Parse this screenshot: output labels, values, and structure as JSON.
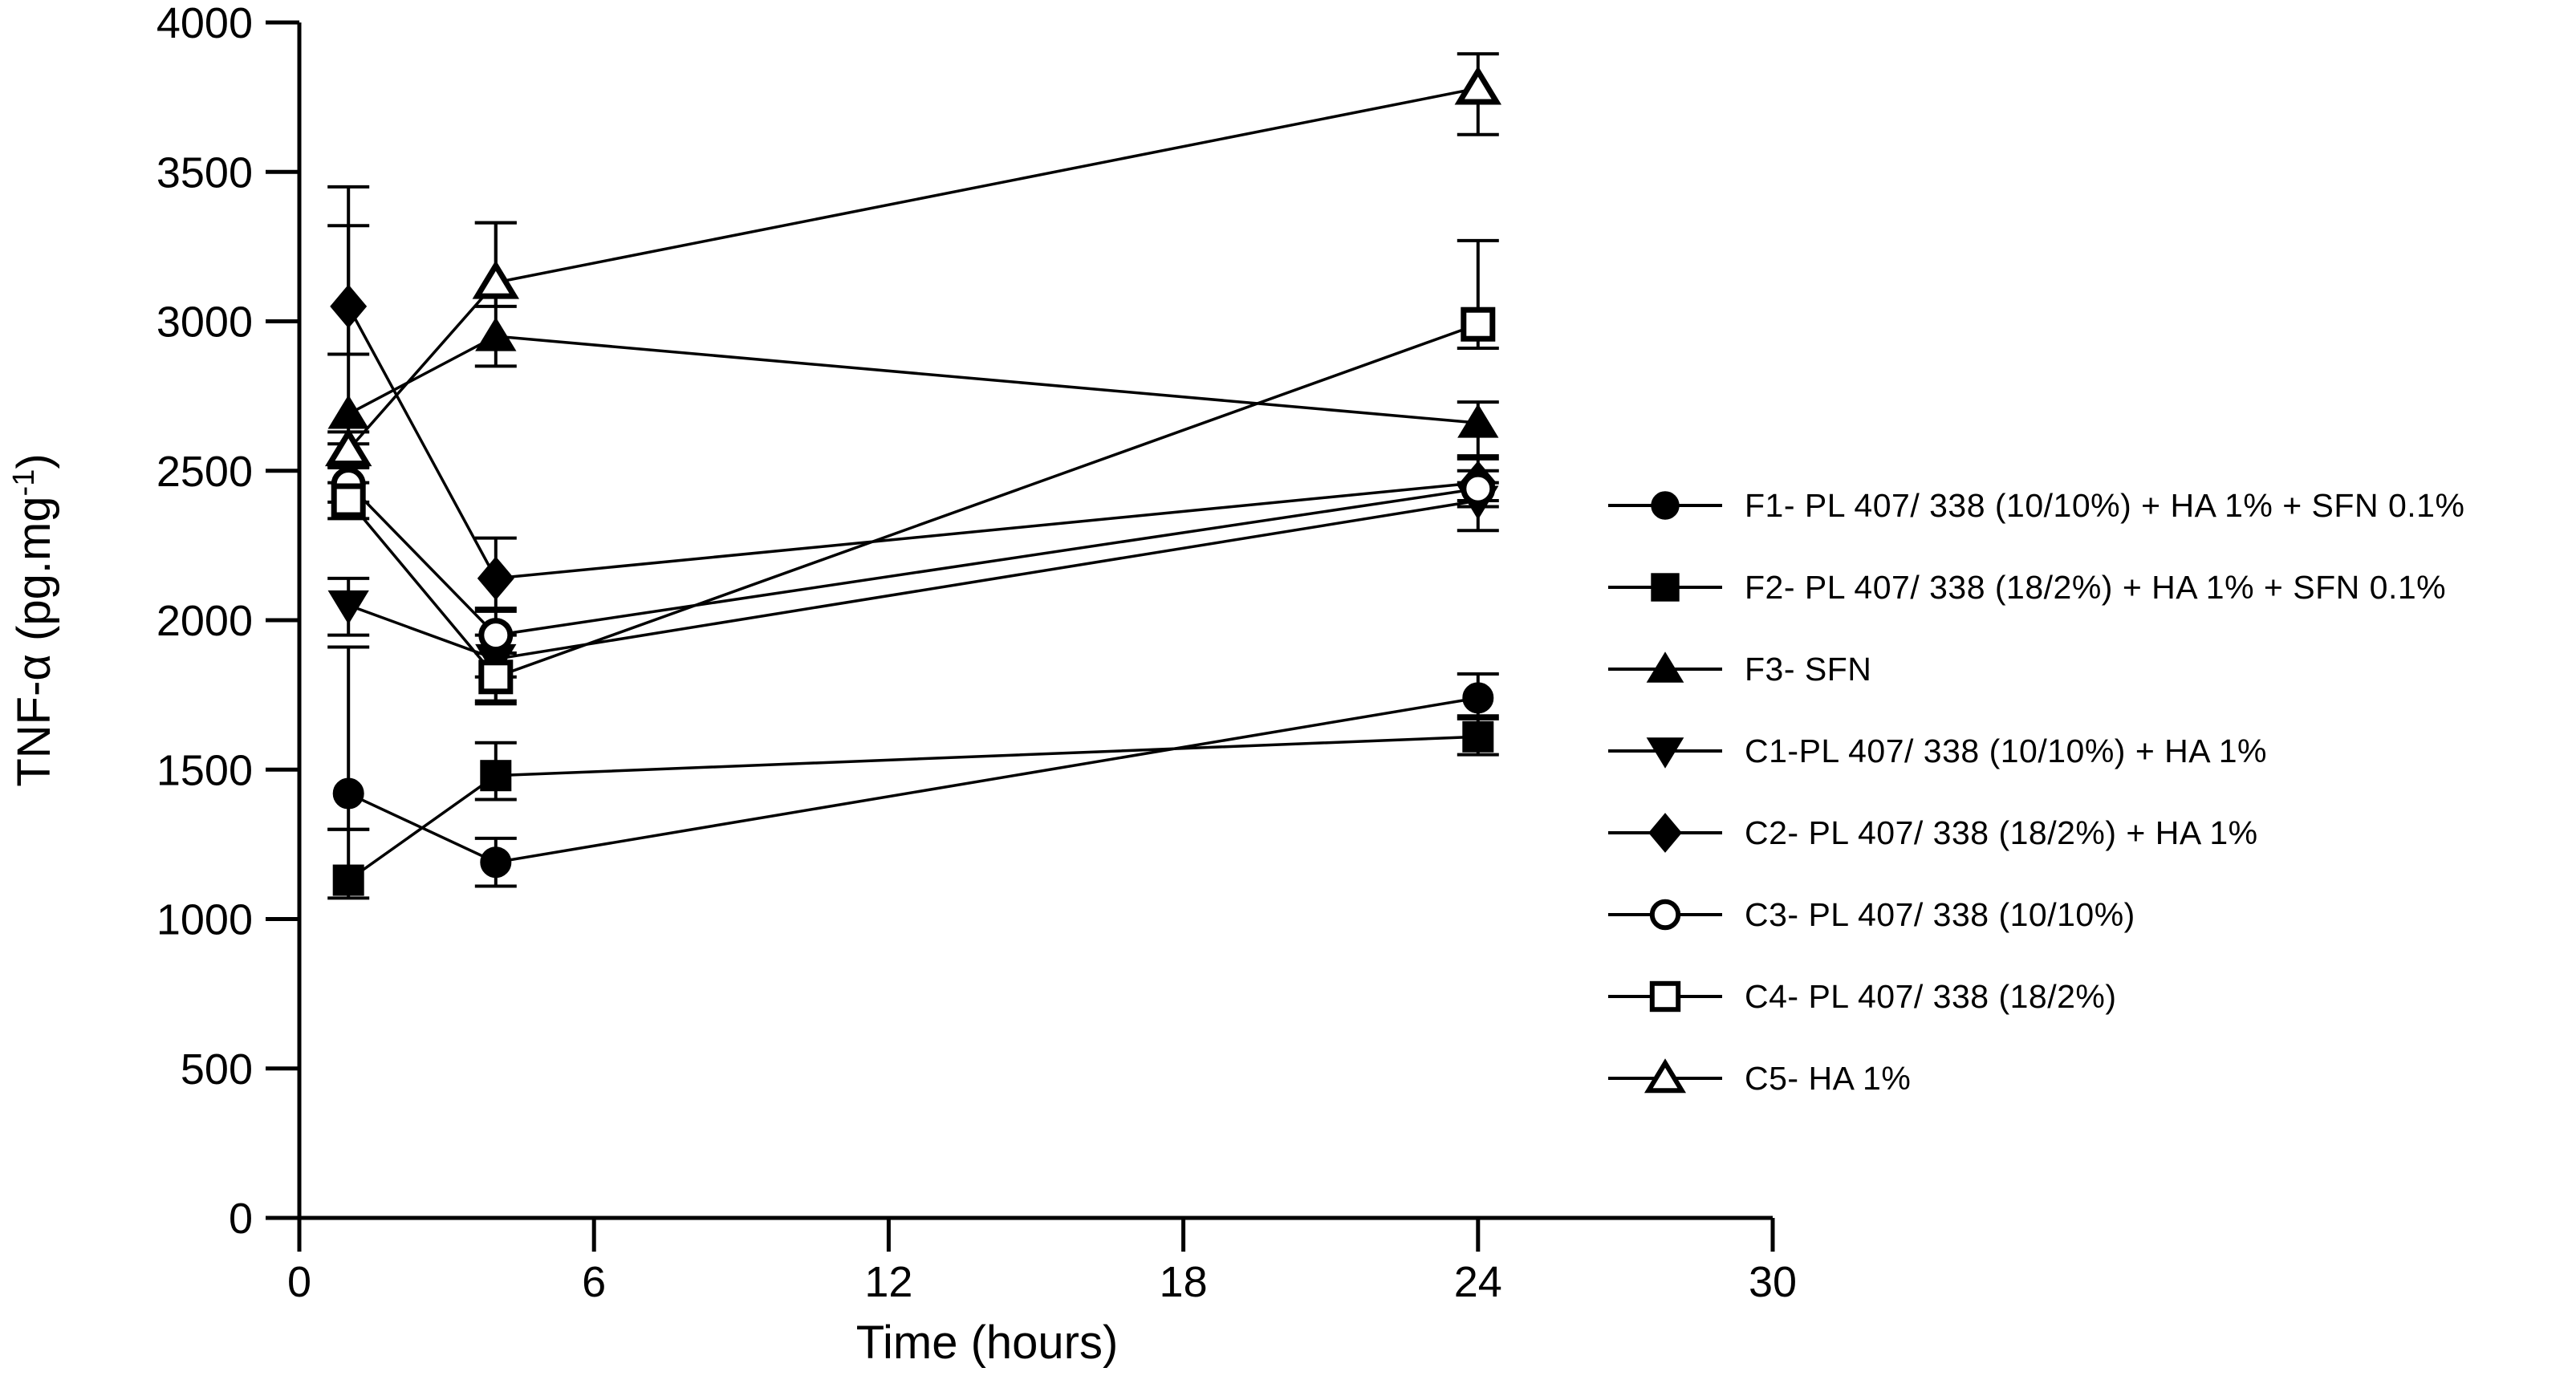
{
  "chart_data": {
    "type": "line",
    "title": "",
    "xlabel": "Time (hours)",
    "ylabel": "TNF-α (pg.mg⁻¹)",
    "ylabel_parts": {
      "main": "TNF-α (pg.mg",
      "sup": "-1",
      "end": ")"
    },
    "xlim": [
      0,
      30
    ],
    "ylim": [
      0,
      4000
    ],
    "xticks": [
      0,
      6,
      12,
      18,
      24,
      30
    ],
    "yticks": [
      0,
      500,
      1000,
      1500,
      2000,
      2500,
      3000,
      3500,
      4000
    ],
    "grid": false,
    "legend_position": "right",
    "x": [
      1,
      4,
      24
    ],
    "series": [
      {
        "id": "F1",
        "name": "F1- PL 407/ 338 (10/10%) + HA 1% + SFN 0.1%",
        "marker": "circle",
        "fill": "filled",
        "color": "#000000",
        "values": [
          1420,
          1190,
          1740
        ],
        "err_up": [
          490,
          80,
          80
        ],
        "err_down": [
          120,
          80,
          60
        ]
      },
      {
        "id": "F2",
        "name": "F2- PL 407/ 338 (18/2%) + HA 1% + SFN 0.1%",
        "marker": "square",
        "fill": "filled",
        "color": "#000000",
        "values": [
          1130,
          1480,
          1610
        ],
        "err_up": [
          170,
          110,
          60
        ],
        "err_down": [
          60,
          80,
          60
        ]
      },
      {
        "id": "F3",
        "name": "F3- SFN",
        "marker": "triangle",
        "fill": "filled",
        "color": "#000000",
        "values": [
          2690,
          2950,
          2660
        ],
        "err_up": [
          630,
          380,
          70
        ],
        "err_down": [
          100,
          100,
          110
        ]
      },
      {
        "id": "C1",
        "name": "C1-PL 407/ 338 (10/10%) + HA 1%",
        "marker": "triangle-down",
        "fill": "filled",
        "color": "#000000",
        "values": [
          2050,
          1870,
          2400
        ],
        "err_up": [
          90,
          80,
          60
        ],
        "err_down": [
          100,
          140,
          100
        ]
      },
      {
        "id": "C2",
        "name": "C2- PL 407/ 338 (18/2%) + HA 1%",
        "marker": "diamond",
        "fill": "filled",
        "color": "#000000",
        "values": [
          3050,
          2140,
          2460
        ],
        "err_up": [
          400,
          135,
          80
        ],
        "err_down": [
          160,
          100,
          60
        ]
      },
      {
        "id": "C3",
        "name": "C3- PL 407/ 338 (10/10%)",
        "marker": "circle",
        "fill": "open",
        "color": "#000000",
        "values": [
          2455,
          1950,
          2440
        ],
        "err_up": [
          60,
          80,
          60
        ],
        "err_down": [
          60,
          140,
          60
        ]
      },
      {
        "id": "C4",
        "name": "C4- PL 407/ 338 (18/2%)",
        "marker": "square",
        "fill": "open",
        "color": "#000000",
        "values": [
          2400,
          1810,
          2990
        ],
        "err_up": [
          60,
          80,
          280
        ],
        "err_down": [
          60,
          90,
          80
        ]
      },
      {
        "id": "C5",
        "name": "C5- HA 1%",
        "marker": "triangle",
        "fill": "open",
        "color": "#000000",
        "values": [
          2570,
          3130,
          3780
        ],
        "err_up": [
          60,
          200,
          115
        ],
        "err_down": [
          60,
          80,
          155
        ]
      }
    ]
  }
}
